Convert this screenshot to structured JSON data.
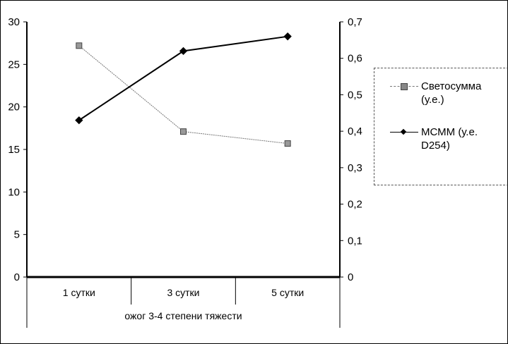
{
  "chart_data": {
    "type": "line",
    "title": "",
    "categories": [
      "1 сутки",
      "3 сутки",
      "5 сутки"
    ],
    "group_label": "ожог 3-4 степени тяжести",
    "y_left": {
      "ylim": [
        0,
        30
      ],
      "ticks": [
        "0",
        "5",
        "10",
        "15",
        "20",
        "25",
        "30"
      ],
      "tick_values": [
        0,
        5,
        10,
        15,
        20,
        25,
        30
      ]
    },
    "y_right": {
      "ylim": [
        0,
        0.7
      ],
      "ticks": [
        "0",
        "0,1",
        "0,2",
        "0,3",
        "0,4",
        "0,5",
        "0,6",
        "0,7"
      ],
      "tick_values": [
        0,
        0.1,
        0.2,
        0.3,
        0.4,
        0.5,
        0.6,
        0.7
      ]
    },
    "series": [
      {
        "name": "Светосумма (у.е.)",
        "legend_lines": [
          "Светосумма",
          "(у.е.)"
        ],
        "axis": "left",
        "values": [
          27.2,
          17.1,
          15.7
        ],
        "marker": "asterisk-square",
        "color": "#777777"
      },
      {
        "name": "МСММ (у.е. D254)",
        "legend_lines": [
          "МСММ (у.е.",
          "D254)"
        ],
        "axis": "right",
        "values": [
          0.43,
          0.62,
          0.66
        ],
        "marker": "diamond",
        "color": "#000000"
      }
    ],
    "legend_position": "right",
    "grid": false
  }
}
